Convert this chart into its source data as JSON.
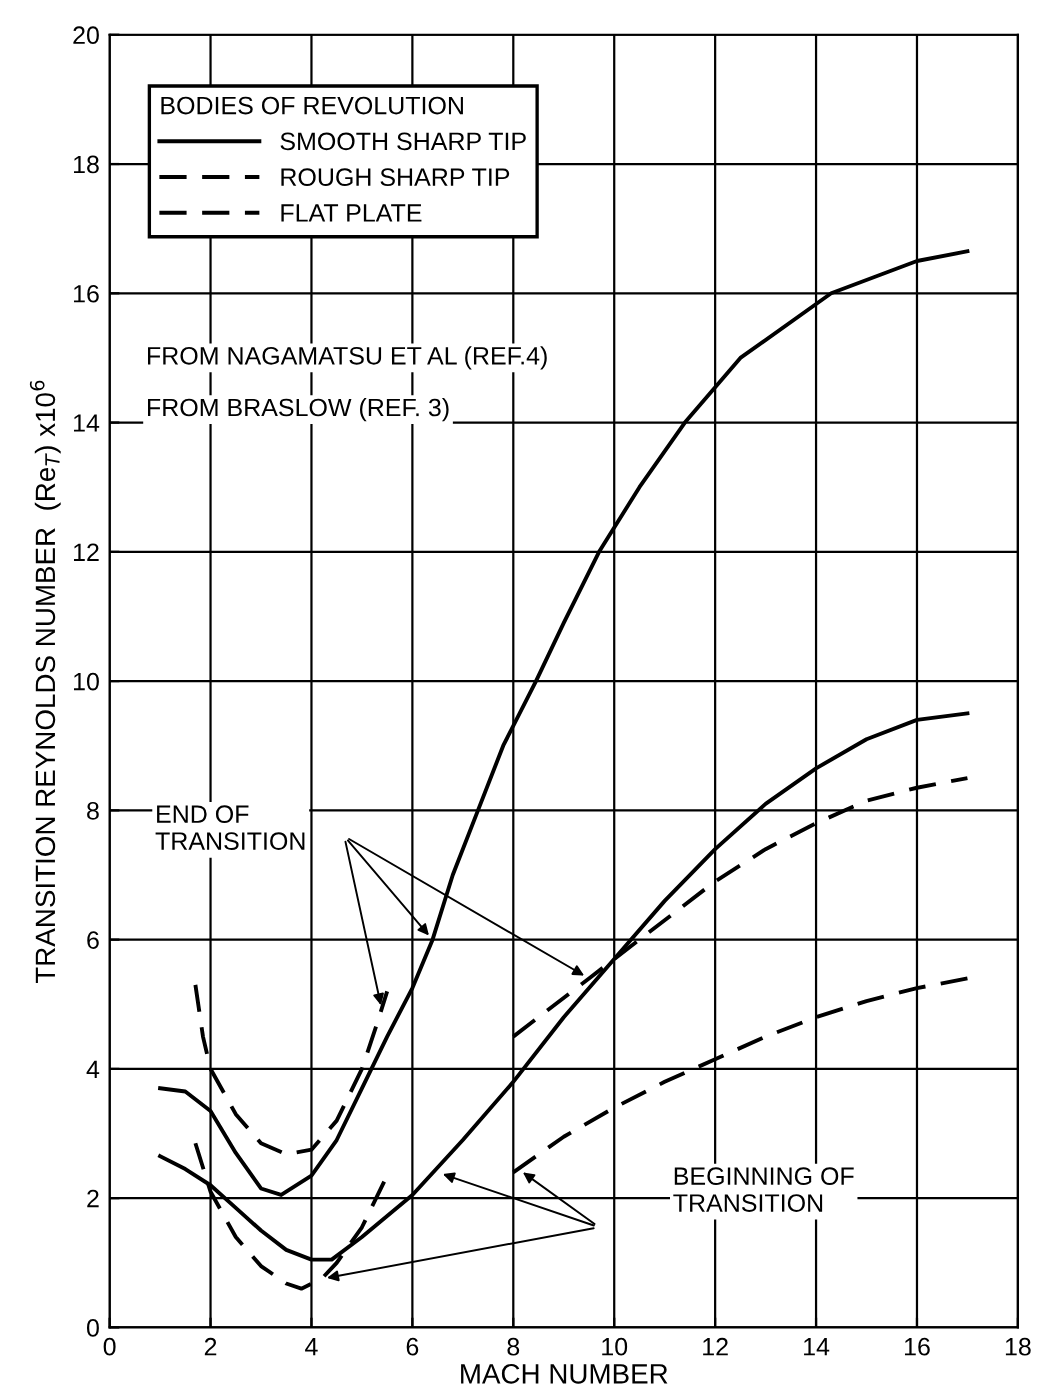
{
  "chart_data": {
    "type": "line",
    "xlabel": "MACH NUMBER",
    "ylabel": "TRANSITION REYNOLDS NUMBER  (Re$_{T}$) x10$^{6}$",
    "legend_title": "BODIES OF REVOLUTION",
    "legend": "top left",
    "grid": true,
    "marker": "none",
    "xlim": [
      0,
      18
    ],
    "xticks": [
      0,
      2,
      4,
      6,
      8,
      10,
      12,
      14,
      16,
      18
    ],
    "ylim": [
      0,
      20
    ],
    "yticks": [
      0,
      2,
      4,
      6,
      8,
      10,
      12,
      14,
      16,
      18,
      20
    ],
    "annotations": [
      "FROM NAGAMATSU ET AL (REF.4)",
      "FROM BRASLOW (REF. 3)",
      "END OF\nTRANSITION",
      "BEGINNING OF\nTRANSITION"
    ],
    "series": [
      {
        "name": "SMOOTH SHARP TIP",
        "color": "#000000",
        "line_style": "solid",
        "x": [
          1,
          1.5,
          2,
          2.5,
          3,
          3.4,
          4,
          4.5,
          5,
          5.5,
          6,
          6.4,
          6.8,
          7.3,
          7.8,
          8.45,
          9,
          9.7,
          10.5,
          11.4,
          12.5,
          14.3,
          16,
          17
        ],
        "values": [
          3.7,
          3.65,
          3.35,
          2.7,
          2.15,
          2.05,
          2.35,
          2.9,
          3.7,
          4.5,
          5.25,
          6,
          7,
          8,
          9,
          10,
          10.9,
          12,
          13,
          14,
          15,
          16,
          16.5,
          16.65
        ]
      },
      {
        "color": "#000000",
        "line_style": "solid",
        "x": [
          1,
          1.5,
          2,
          2.5,
          3,
          3.5,
          4,
          4.4,
          5,
          6,
          7,
          8,
          9,
          10,
          11,
          12,
          13,
          14,
          15,
          16,
          17
        ],
        "values": [
          2.65,
          2.45,
          2.2,
          1.85,
          1.5,
          1.2,
          1.05,
          1.05,
          1.4,
          2.05,
          2.9,
          3.8,
          4.8,
          5.7,
          6.6,
          7.4,
          8.1,
          8.65,
          9.1,
          9.4,
          9.5
        ]
      },
      {
        "name": "ROUGH SHARP TIP",
        "color": "#000000",
        "line_style": "dashed",
        "x": [
          8,
          9.5,
          10.5,
          12,
          13,
          14,
          15,
          16,
          17
        ],
        "values": [
          4.5,
          5.4,
          6.0,
          6.9,
          7.4,
          7.8,
          8.15,
          8.35,
          8.5
        ]
      },
      {
        "color": "#000000",
        "line_style": "dashed",
        "x": [
          8,
          9,
          10,
          11,
          12,
          13,
          14,
          15,
          16,
          17
        ],
        "values": [
          2.4,
          2.95,
          3.4,
          3.8,
          4.15,
          4.5,
          4.8,
          5.05,
          5.25,
          5.4
        ]
      },
      {
        "name": "FLAT PLATE",
        "color": "#000000",
        "line_style": "dashed",
        "x": [
          1.7,
          1.85,
          2,
          2.5,
          3,
          3.5,
          4,
          4.5,
          5,
          5.3,
          5.5
        ],
        "values": [
          5.3,
          4.5,
          4.0,
          3.3,
          2.85,
          2.68,
          2.75,
          3.2,
          4.0,
          4.7,
          5.2
        ]
      },
      {
        "color": "#000000",
        "line_style": "dashed",
        "x": [
          1.7,
          2,
          2.5,
          3,
          3.5,
          3.8,
          4.2,
          4.5,
          5,
          5.5
        ],
        "values": [
          2.85,
          2.1,
          1.4,
          0.95,
          0.68,
          0.6,
          0.75,
          1.0,
          1.55,
          2.35
        ]
      }
    ]
  }
}
